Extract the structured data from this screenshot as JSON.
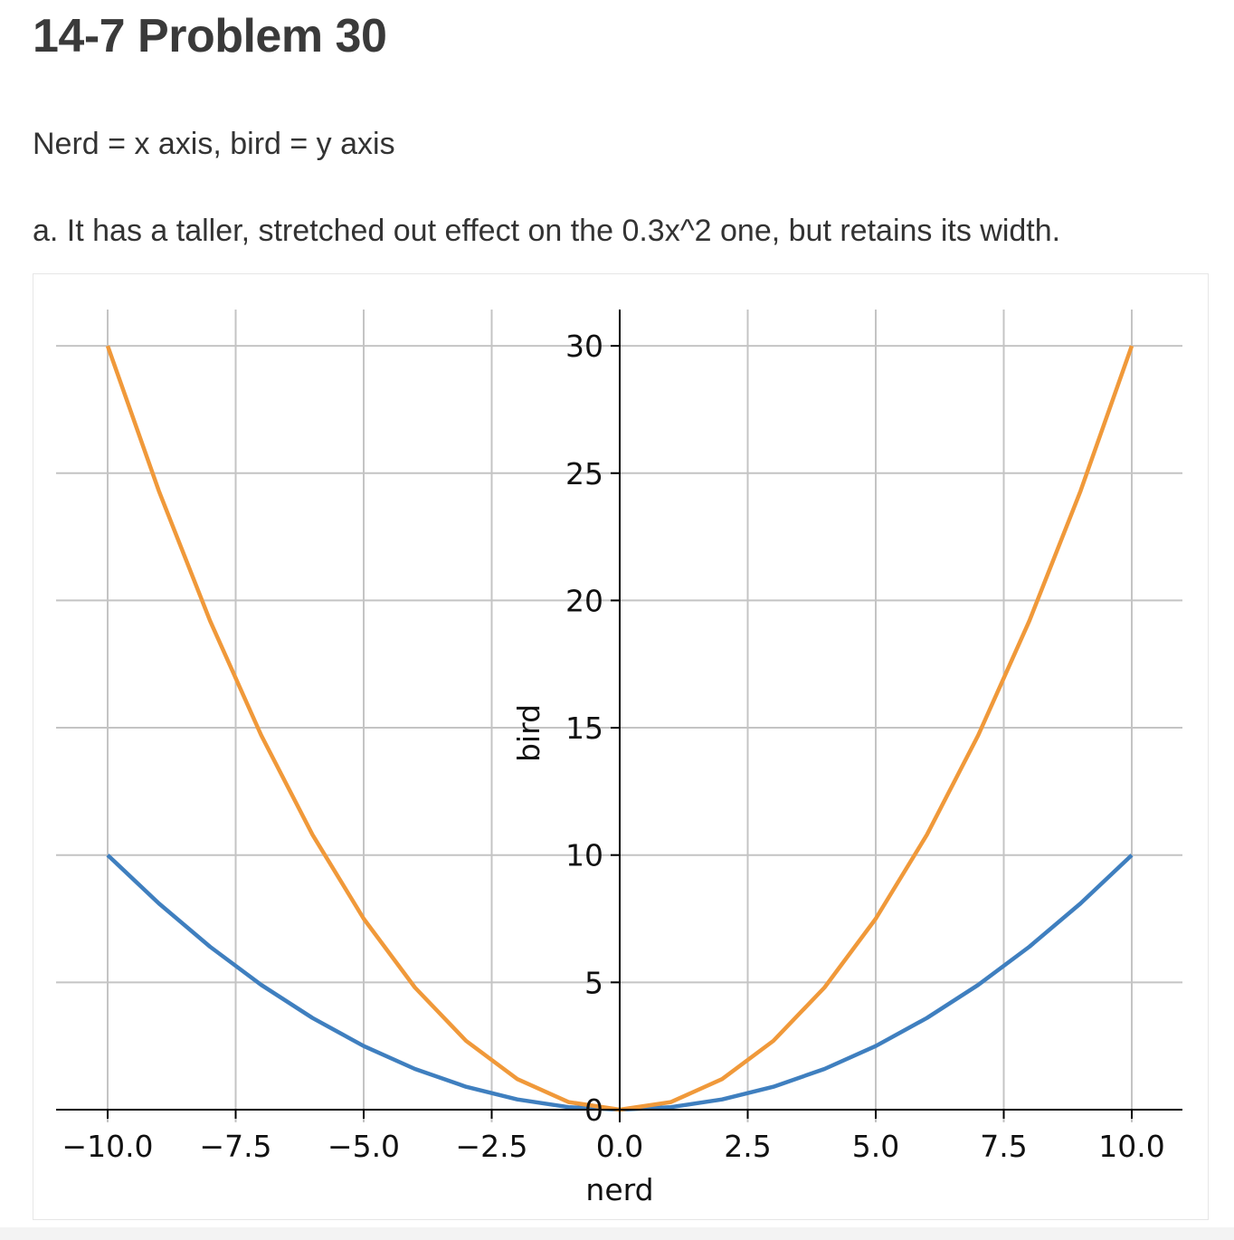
{
  "page": {
    "title": "14-7 Problem 30",
    "paragraph1": "Nerd = x axis, bird = y axis",
    "paragraph2": "a. It has a taller, stretched out effect on the 0.3x^2 one, but retains its width."
  },
  "chart_data": {
    "type": "line",
    "xlabel": "nerd",
    "ylabel": "bird",
    "xlim": [
      -10.4,
      10.5
    ],
    "ylim": [
      -0.5,
      31.4
    ],
    "grid": true,
    "spines": "centered",
    "x_ticks": [
      -10.0,
      -7.5,
      -5.0,
      -2.5,
      0.0,
      2.5,
      5.0,
      7.5,
      10.0
    ],
    "x_tick_labels": [
      "−10.0",
      "−7.5",
      "−5.0",
      "−2.5",
      "0.0",
      "2.5",
      "5.0",
      "7.5",
      "10.0"
    ],
    "y_ticks": [
      0,
      5,
      10,
      15,
      20,
      25,
      30
    ],
    "y_tick_labels": [
      "0",
      "5",
      "10",
      "15",
      "20",
      "25",
      "30"
    ],
    "x": [
      -10,
      -9,
      -8,
      -7,
      -6,
      -5,
      -4,
      -3,
      -2,
      -1,
      0,
      1,
      2,
      3,
      4,
      5,
      6,
      7,
      8,
      9,
      10
    ],
    "series": [
      {
        "color": "#3f7fbf",
        "values": [
          10,
          8.1,
          6.4,
          4.9,
          3.6,
          2.5,
          1.6,
          0.9,
          0.4,
          0.1,
          0,
          0.1,
          0.4,
          0.9,
          1.6,
          2.5,
          3.6,
          4.9,
          6.4,
          8.1,
          10
        ]
      },
      {
        "color": "#f0993a",
        "values": [
          30,
          24.3,
          19.2,
          14.7,
          10.8,
          7.5,
          4.8,
          2.7,
          1.2,
          0.3,
          0,
          0.3,
          1.2,
          2.7,
          4.8,
          7.5,
          10.8,
          14.7,
          19.2,
          24.3,
          30
        ]
      }
    ]
  }
}
